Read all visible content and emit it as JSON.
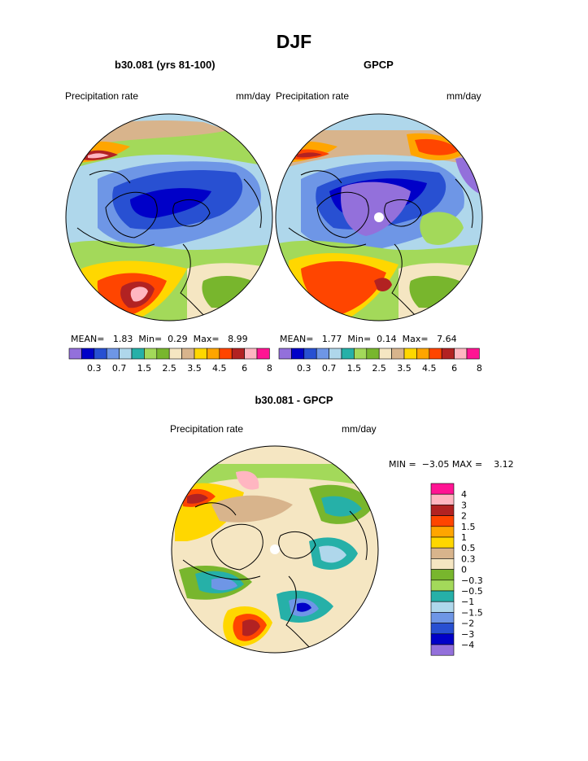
{
  "page": {
    "title": "DJF",
    "panel_left_title": "b30.081 (yrs 81-100)",
    "panel_right_title": "GPCP",
    "panel_bottom_title": "b30.081 - GPCP"
  },
  "chart_data": [
    {
      "type": "heatmap",
      "projection": "polar-stereographic",
      "title": "b30.081 (yrs 81-100)",
      "left_label": "Precipitation rate",
      "right_label": "mm/day",
      "stats": {
        "mean_label": "MEAN=",
        "mean": "1.83",
        "min_label": "Min=",
        "min": "0.29",
        "max_label": "Max=",
        "max": "8.99"
      },
      "levels": [
        "0.3",
        "0.7",
        "1.5",
        "2.5",
        "3.5",
        "4.5",
        "6",
        "8"
      ],
      "colors": [
        "#9370db",
        "#0000c8",
        "#2850d2",
        "#6e96e6",
        "#afd7eb",
        "#26b0a8",
        "#a3d95a",
        "#78b62d",
        "#f5e6c2",
        "#d8b48c",
        "#ffd700",
        "#ffa500",
        "#ff4500",
        "#b22222",
        "#ffb6c1",
        "#ff1493"
      ]
    },
    {
      "type": "heatmap",
      "projection": "polar-stereographic",
      "title": "GPCP",
      "left_label": "Precipitation rate",
      "right_label": "mm/day",
      "stats": {
        "mean_label": "MEAN=",
        "mean": "1.77",
        "min_label": "Min=",
        "min": "0.14",
        "max_label": "Max=",
        "max": "7.64"
      },
      "levels": [
        "0.3",
        "0.7",
        "1.5",
        "2.5",
        "3.5",
        "4.5",
        "6",
        "8"
      ],
      "colors": [
        "#9370db",
        "#0000c8",
        "#2850d2",
        "#6e96e6",
        "#afd7eb",
        "#26b0a8",
        "#a3d95a",
        "#78b62d",
        "#f5e6c2",
        "#d8b48c",
        "#ffd700",
        "#ffa500",
        "#ff4500",
        "#b22222",
        "#ffb6c1",
        "#ff1493"
      ]
    },
    {
      "type": "heatmap",
      "projection": "polar-stereographic",
      "title": "b30.081 - GPCP",
      "left_label": "Precipitation rate",
      "right_label": "mm/day",
      "stats": {
        "min_label": "MIN =",
        "min": "−3.05",
        "max_label": "MAX =",
        "max": "3.12"
      },
      "levels": [
        "4",
        "3",
        "2",
        "1.5",
        "1",
        "0.5",
        "0.3",
        "0",
        "−0.3",
        "−0.5",
        "−1",
        "−1.5",
        "−2",
        "−3",
        "−4"
      ],
      "colors": [
        "#ff1493",
        "#ffb6c1",
        "#b22222",
        "#ff4500",
        "#ffa500",
        "#ffd700",
        "#d8b48c",
        "#f5e6c2",
        "#78b62d",
        "#a3d95a",
        "#26b0a8",
        "#afd7eb",
        "#6e96e6",
        "#2850d2",
        "#0000c8",
        "#9370db"
      ]
    }
  ]
}
